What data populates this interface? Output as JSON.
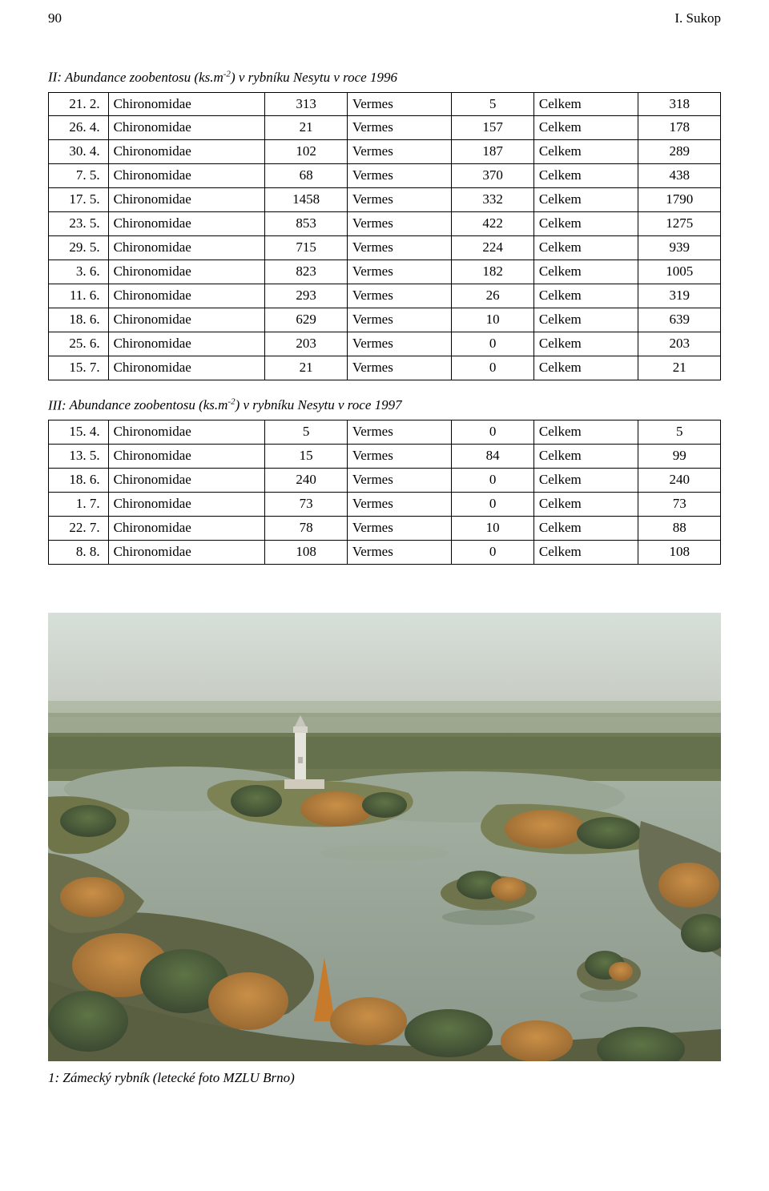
{
  "header": {
    "pageNumber": "90",
    "author": "I. Sukop"
  },
  "tables": [
    {
      "title_prefix": "II: ",
      "title_ital": "Abundance zoobentosu (ks.m",
      "title_sup": "-2",
      "title_suffix": ") v rybníku Nesytu v roce 1996",
      "rows": [
        {
          "date": "21. 2.",
          "label1": "Chironomidae",
          "val1": "313",
          "label2": "Vermes",
          "val2": "5",
          "label3": "Celkem",
          "val3": "318"
        },
        {
          "date": "26. 4.",
          "label1": "Chironomidae",
          "val1": "21",
          "label2": "Vermes",
          "val2": "157",
          "label3": "Celkem",
          "val3": "178"
        },
        {
          "date": "30. 4.",
          "label1": "Chironomidae",
          "val1": "102",
          "label2": "Vermes",
          "val2": "187",
          "label3": "Celkem",
          "val3": "289"
        },
        {
          "date": "7. 5.",
          "label1": "Chironomidae",
          "val1": "68",
          "label2": "Vermes",
          "val2": "370",
          "label3": "Celkem",
          "val3": "438"
        },
        {
          "date": "17. 5.",
          "label1": "Chironomidae",
          "val1": "1458",
          "label2": "Vermes",
          "val2": "332",
          "label3": "Celkem",
          "val3": "1790"
        },
        {
          "date": "23. 5.",
          "label1": "Chironomidae",
          "val1": "853",
          "label2": "Vermes",
          "val2": "422",
          "label3": "Celkem",
          "val3": "1275"
        },
        {
          "date": "29. 5.",
          "label1": "Chironomidae",
          "val1": "715",
          "label2": "Vermes",
          "val2": "224",
          "label3": "Celkem",
          "val3": "939"
        },
        {
          "date": "3. 6.",
          "label1": "Chironomidae",
          "val1": "823",
          "label2": "Vermes",
          "val2": "182",
          "label3": "Celkem",
          "val3": "1005"
        },
        {
          "date": "11. 6.",
          "label1": "Chironomidae",
          "val1": "293",
          "label2": "Vermes",
          "val2": "26",
          "label3": "Celkem",
          "val3": "319"
        },
        {
          "date": "18. 6.",
          "label1": "Chironomidae",
          "val1": "629",
          "label2": "Vermes",
          "val2": "10",
          "label3": "Celkem",
          "val3": "639"
        },
        {
          "date": "25. 6.",
          "label1": "Chironomidae",
          "val1": "203",
          "label2": "Vermes",
          "val2": "0",
          "label3": "Celkem",
          "val3": "203"
        },
        {
          "date": "15. 7.",
          "label1": "Chironomidae",
          "val1": "21",
          "label2": "Vermes",
          "val2": "0",
          "label3": "Celkem",
          "val3": "21"
        }
      ]
    },
    {
      "title_prefix": "III: ",
      "title_ital": "Abundance zoobentosu (ks.m",
      "title_sup": "-2",
      "title_suffix": ") v rybníku Nesytu v roce 1997",
      "rows": [
        {
          "date": "15. 4.",
          "label1": "Chironomidae",
          "val1": "5",
          "label2": "Vermes",
          "val2": "0",
          "label3": "Celkem",
          "val3": "5"
        },
        {
          "date": "13. 5.",
          "label1": "Chironomidae",
          "val1": "15",
          "label2": "Vermes",
          "val2": "84",
          "label3": "Celkem",
          "val3": "99"
        },
        {
          "date": "18. 6.",
          "label1": "Chironomidae",
          "val1": "240",
          "label2": "Vermes",
          "val2": "0",
          "label3": "Celkem",
          "val3": "240"
        },
        {
          "date": "1. 7.",
          "label1": "Chironomidae",
          "val1": "73",
          "label2": "Vermes",
          "val2": "0",
          "label3": "Celkem",
          "val3": "73"
        },
        {
          "date": "22. 7.",
          "label1": "Chironomidae",
          "val1": "78",
          "label2": "Vermes",
          "val2": "10",
          "label3": "Celkem",
          "val3": "88"
        },
        {
          "date": "8. 8.",
          "label1": "Chironomidae",
          "val1": "108",
          "label2": "Vermes",
          "val2": "0",
          "label3": "Celkem",
          "val3": "108"
        }
      ]
    }
  ],
  "figure": {
    "caption": "1: Zámecký rybník (letecké foto MZLU Brno)",
    "colors": {
      "sky_top": "#d7dfd9",
      "sky_mid": "#c9cfc6",
      "horizon": "#a0ac96",
      "water": "#8a978a",
      "water_light": "#a4b0a2",
      "land_dark": "#5f6a4e",
      "land_mid": "#7d8255",
      "tree_autumn1": "#b57d3a",
      "tree_autumn2": "#9a6a32",
      "tree_autumn3": "#c98f47",
      "tree_green": "#4c5f3e",
      "tree_dark": "#3c4a32",
      "shore": "#6a6e55",
      "tower": "#e4e3dc",
      "tower_shadow": "#b8b6ac"
    }
  }
}
